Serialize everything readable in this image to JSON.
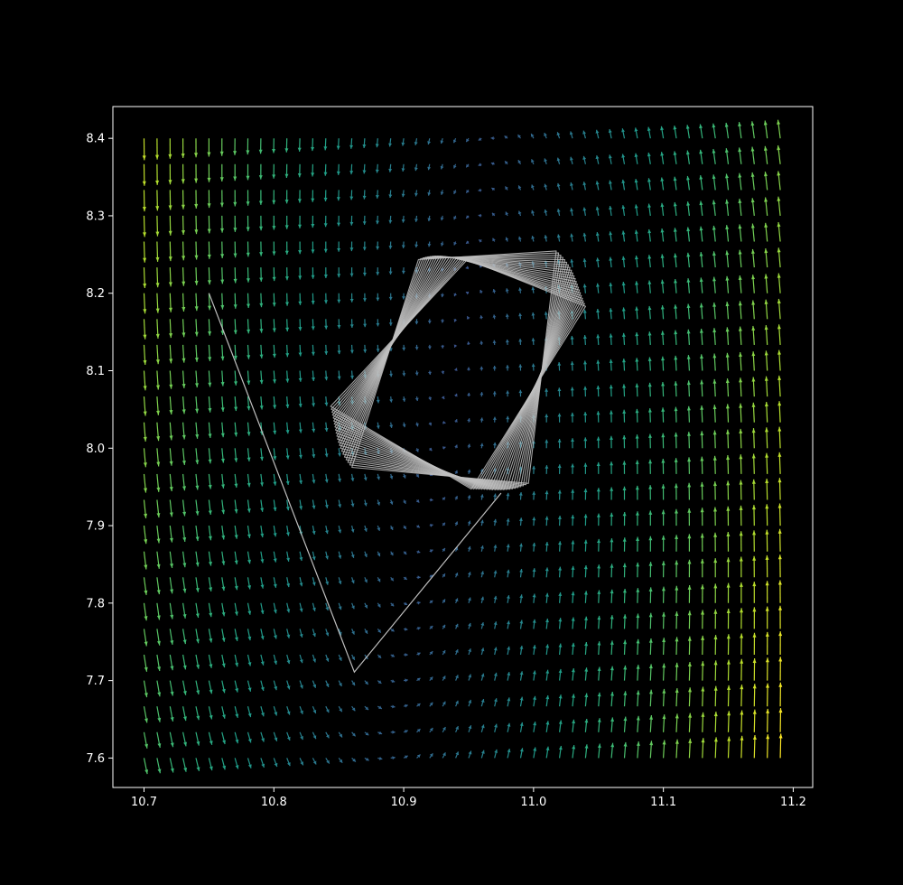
{
  "chart_data": {
    "type": "quiver",
    "title": "",
    "xlabel": "",
    "ylabel": "",
    "xlim": [
      10.676,
      11.215
    ],
    "ylim": [
      7.562,
      8.441
    ],
    "x_ticks": [
      "10.7",
      "10.8",
      "10.9",
      "11.0",
      "11.1",
      "11.2"
    ],
    "y_ticks": [
      "7.6",
      "7.7",
      "7.8",
      "7.9",
      "8.0",
      "8.1",
      "8.2",
      "8.3",
      "8.4"
    ],
    "grid": false,
    "legend": "none",
    "vector_field": {
      "x_range": [
        10.7,
        11.19
      ],
      "y_range": [
        7.6,
        8.4
      ],
      "nx": 50,
      "ny": 25,
      "equilibrium": [
        10.94,
        8.12
      ],
      "colormap": "viridis"
    },
    "trajectory": {
      "start": [
        10.75,
        8.2
      ],
      "points": [
        [
          10.75,
          8.2
        ],
        [
          10.862,
          7.711
        ],
        [
          10.975,
          7.942
        ]
      ],
      "limit_cycle_vertices": [
        [
          10.93,
          8.253
        ],
        [
          11.035,
          8.225
        ],
        [
          10.975,
          7.94
        ],
        [
          10.845,
          8.01
        ]
      ],
      "cycle_count": 22
    },
    "colors": {
      "background": "#000000",
      "axes_frame": "#ffffff",
      "tick_text": "#ffffff",
      "trajectory": "#bfbfbf"
    }
  }
}
